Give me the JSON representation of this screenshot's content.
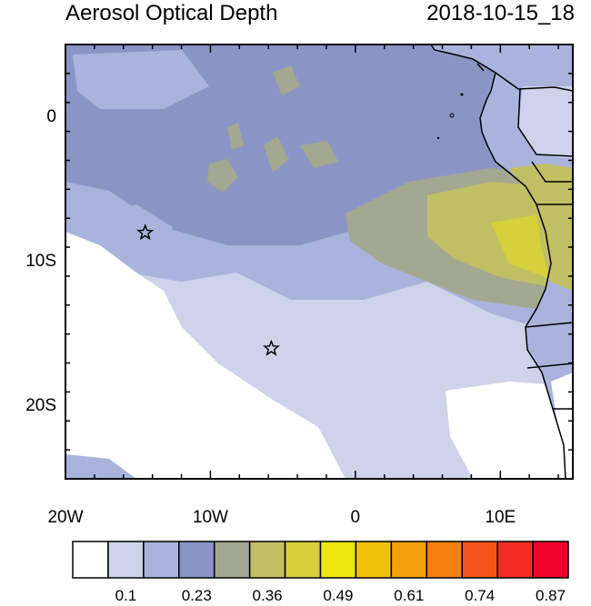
{
  "header": {
    "title": "Aerosol Optical Depth",
    "timestamp": "2018-10-15_18"
  },
  "map": {
    "lon_range": [
      -20,
      15
    ],
    "lat_range": [
      -25,
      5
    ],
    "x_ticks": [
      {
        "lon": -20,
        "label": "20W"
      },
      {
        "lon": -10,
        "label": "10W"
      },
      {
        "lon": 0,
        "label": "0"
      },
      {
        "lon": 10,
        "label": "10E"
      }
    ],
    "y_ticks": [
      {
        "lat": 0,
        "label": "0"
      },
      {
        "lat": -10,
        "label": "10S"
      },
      {
        "lat": -20,
        "label": "20S"
      }
    ],
    "stars": [
      {
        "lon": -14.5,
        "lat": -8
      },
      {
        "lon": -5.8,
        "lat": -16
      }
    ]
  },
  "colorbar": {
    "colors": [
      "#ffffff",
      "#cdd3ea",
      "#a9b3dc",
      "#8a95c6",
      "#a3a890",
      "#c1bf63",
      "#d6d03c",
      "#eee60f",
      "#f2c20b",
      "#f4a10b",
      "#f5800f",
      "#f5551a",
      "#f32b22",
      "#f2002c"
    ],
    "labels": [
      {
        "after_box": 1,
        "text": "0.1"
      },
      {
        "after_box": 3,
        "text": "0.23"
      },
      {
        "after_box": 5,
        "text": "0.36"
      },
      {
        "after_box": 7,
        "text": "0.49"
      },
      {
        "after_box": 9,
        "text": "0.61"
      },
      {
        "after_box": 11,
        "text": "0.74"
      },
      {
        "after_box": 13,
        "text": "0.87"
      }
    ]
  }
}
